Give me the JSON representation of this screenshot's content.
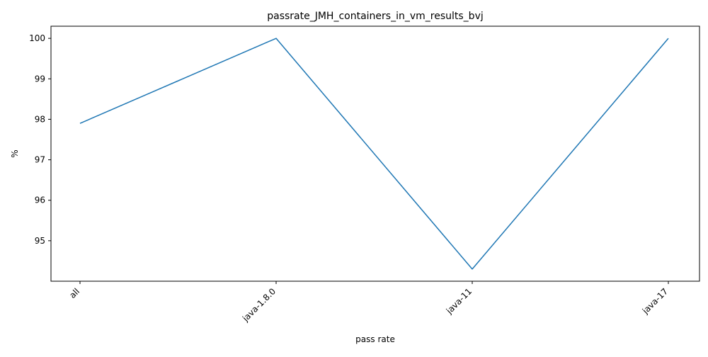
{
  "chart_data": {
    "type": "line",
    "title": "passrate_JMH_containers_in_vm_results_bvj",
    "xlabel": "pass rate",
    "ylabel": "%",
    "categories": [
      "all",
      "java-1.8.0",
      "java-11",
      "java-17"
    ],
    "series": [
      {
        "values": [
          97.9,
          100.0,
          94.3,
          100.0
        ],
        "color": "#1f77b4"
      }
    ],
    "yticks": [
      95,
      96,
      97,
      98,
      99,
      100
    ],
    "ylim": [
      94.0,
      100.3
    ],
    "grid": false,
    "legend": "none",
    "xtick_rotation": 45
  }
}
